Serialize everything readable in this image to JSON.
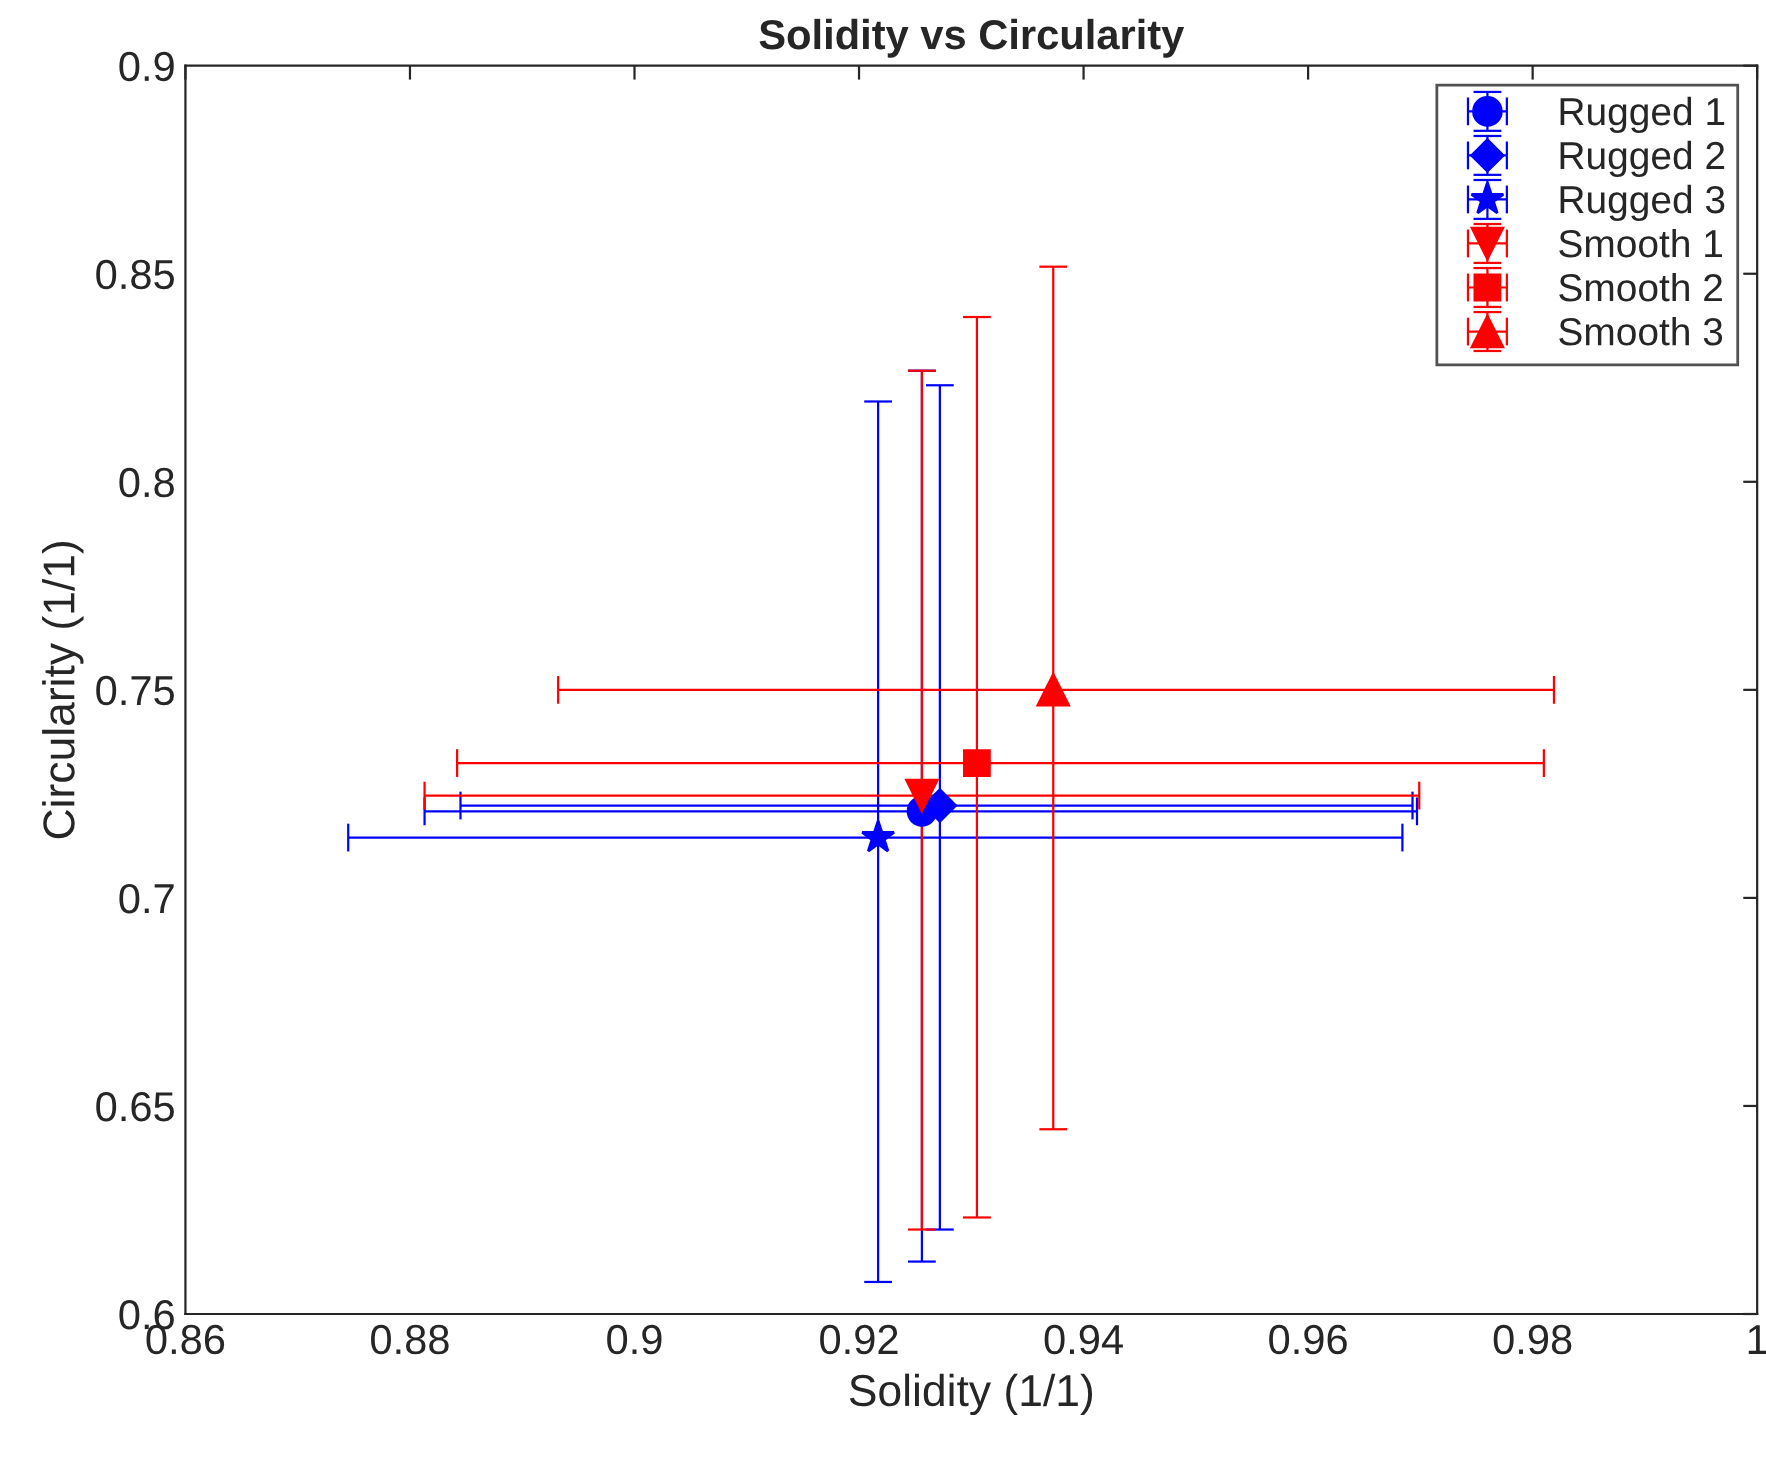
{
  "chart_data": {
    "type": "scatter",
    "title": "Solidity vs Circularity",
    "xlabel": "Solidity (1/1)",
    "ylabel": "Circularity (1/1)",
    "xlim": [
      0.86,
      1
    ],
    "xticks": [
      0.86,
      0.88,
      0.9,
      0.92,
      0.94,
      0.96,
      0.98,
      1
    ],
    "ylim": [
      0.6,
      0.9
    ],
    "yticks": [
      0.6,
      0.65,
      0.7,
      0.75,
      0.8,
      0.85,
      0.9
    ],
    "grid": false,
    "legend": "top right",
    "series": [
      {
        "name": "Rugged 1",
        "color": "#0000ff",
        "marker": "circle",
        "x": [
          0.9256
        ],
        "values": [
          0.7208
        ],
        "errors": [
          [
            0.6126,
            0.8267
          ]
        ],
        "xerrors": [
          [
            0.8813,
            0.9697
          ]
        ]
      },
      {
        "name": "Rugged 2",
        "color": "#0000ff",
        "marker": "diamond",
        "x": [
          0.9272
        ],
        "values": [
          0.7222
        ],
        "errors": [
          [
            0.6203,
            0.8232
          ]
        ],
        "xerrors": [
          [
            0.8845,
            0.9693
          ]
        ]
      },
      {
        "name": "Rugged 3",
        "color": "#0000ff",
        "marker": "star",
        "x": [
          0.9217
        ],
        "values": [
          0.7145
        ],
        "errors": [
          [
            0.6077,
            0.8193
          ]
        ],
        "xerrors": [
          [
            0.8745,
            0.9684
          ]
        ]
      },
      {
        "name": "Smooth 1",
        "color": "#ff0000",
        "marker": "triangle_down",
        "x": [
          0.9256
        ],
        "values": [
          0.7246
        ],
        "errors": [
          [
            0.6203,
            0.8267
          ]
        ],
        "xerrors": [
          [
            0.8813,
            0.9699
          ]
        ]
      },
      {
        "name": "Smooth 2",
        "color": "#ff0000",
        "marker": "square",
        "x": [
          0.9305
        ],
        "values": [
          0.7324
        ],
        "errors": [
          [
            0.6232,
            0.8396
          ]
        ],
        "xerrors": [
          [
            0.8842,
            0.981
          ]
        ]
      },
      {
        "name": "Smooth 3",
        "color": "#ff0000",
        "marker": "triangle",
        "x": [
          0.9373
        ],
        "values": [
          0.75
        ],
        "errors": [
          [
            0.6444,
            0.8517
          ]
        ],
        "xerrors": [
          [
            0.8932,
            0.9819
          ]
        ]
      }
    ]
  }
}
